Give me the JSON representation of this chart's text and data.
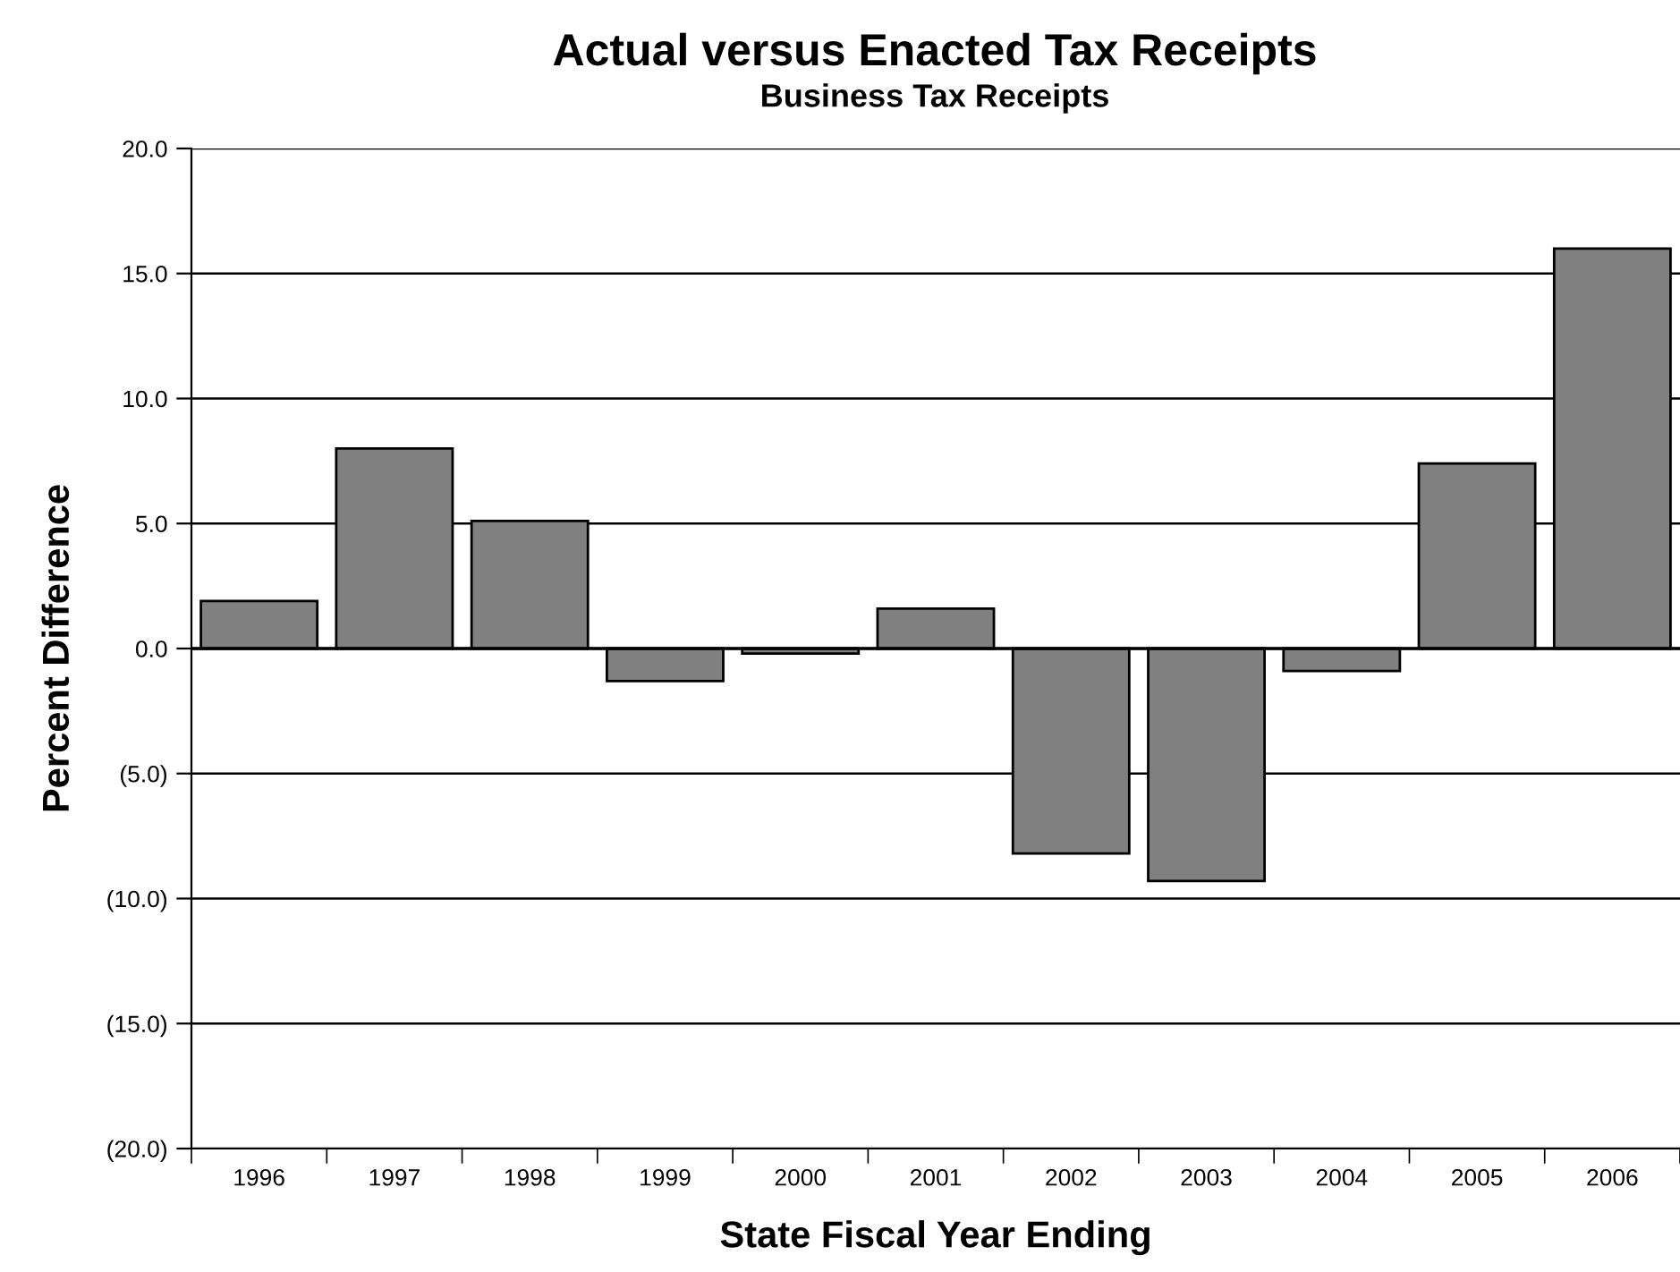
{
  "chart_data": {
    "type": "bar",
    "title": "Actual versus Enacted Tax Receipts",
    "subtitle": "Business Tax Receipts",
    "xlabel": "State Fiscal Year Ending",
    "ylabel": "Percent Difference",
    "categories": [
      "1996",
      "1997",
      "1998",
      "1999",
      "2000",
      "2001",
      "2002",
      "2003",
      "2004",
      "2005",
      "2006"
    ],
    "values": [
      1.9,
      8.0,
      5.1,
      -1.3,
      -0.2,
      1.6,
      -8.2,
      -9.3,
      -0.9,
      7.4,
      16.0
    ],
    "color": "#808080",
    "ylim": [
      -20,
      20
    ],
    "yticks": [
      {
        "value": -20,
        "label": "(20.0)"
      },
      {
        "value": -15,
        "label": "(15.0)"
      },
      {
        "value": -10,
        "label": "(10.0)"
      },
      {
        "value": -5,
        "label": "(5.0)"
      },
      {
        "value": 0,
        "label": "0.0"
      },
      {
        "value": 5,
        "label": "5.0"
      },
      {
        "value": 10,
        "label": "10.0"
      },
      {
        "value": 15,
        "label": "15.0"
      },
      {
        "value": 20,
        "label": "20.0"
      }
    ],
    "grid": "y"
  }
}
